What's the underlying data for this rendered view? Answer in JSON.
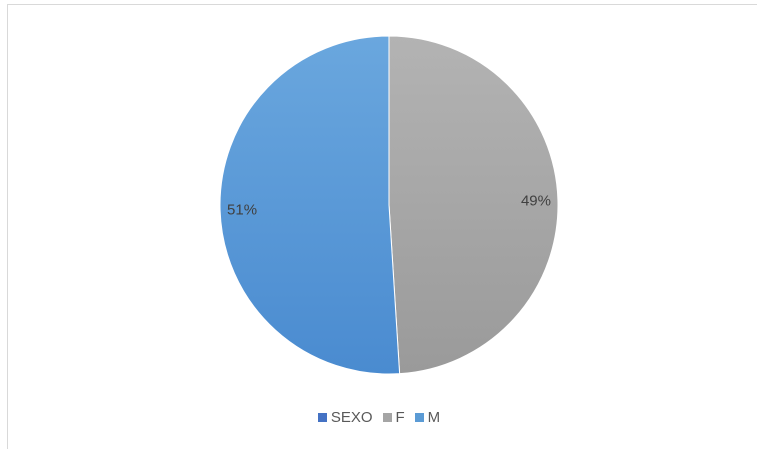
{
  "chart_data": {
    "type": "pie",
    "title": "",
    "legend_position": "bottom",
    "legend": [
      {
        "label": "SEXO",
        "color": "#4472c4"
      },
      {
        "label": "F",
        "color": "#a5a5a5"
      },
      {
        "label": "M",
        "color": "#5b9bd5"
      }
    ],
    "slices": [
      {
        "name": "F",
        "value": 49,
        "label": "49%",
        "color": "#a5a5a5"
      },
      {
        "name": "M",
        "value": 51,
        "label": "51%",
        "color": "#5b9bd5"
      }
    ]
  }
}
